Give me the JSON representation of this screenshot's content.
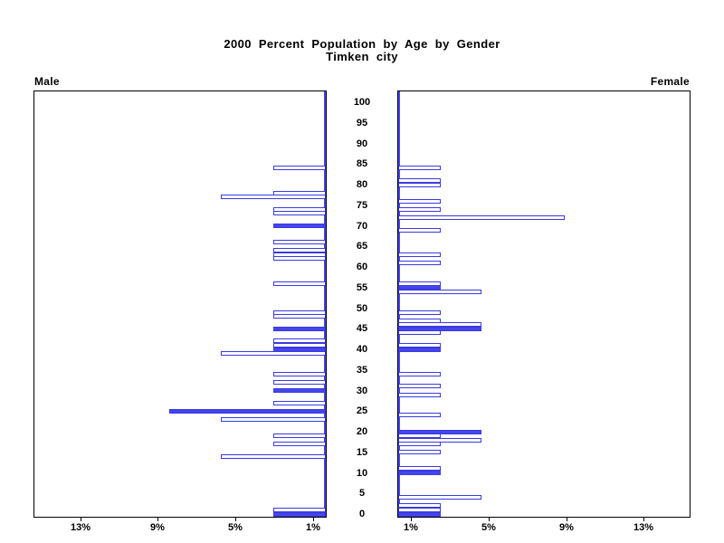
{
  "title": {
    "line1": "2000 Percent Population by Age by Gender",
    "line2": "Timken city"
  },
  "headers": {
    "left": "Male",
    "right": "Female"
  },
  "colors": {
    "bar_outline": "#3a3ae0",
    "bar_fill": "#4545ee",
    "axis_line": "#4545ee",
    "frame": "#000000",
    "text": "#000000",
    "background": "#ffffff"
  },
  "age_axis": {
    "tick_labels": [
      "0",
      "5",
      "10",
      "15",
      "20",
      "25",
      "30",
      "35",
      "40",
      "45",
      "50",
      "55",
      "60",
      "65",
      "70",
      "75",
      "80",
      "85",
      "90",
      "95",
      "100"
    ],
    "tick_values": [
      0,
      5,
      10,
      15,
      20,
      25,
      30,
      35,
      40,
      45,
      50,
      55,
      60,
      65,
      70,
      75,
      80,
      85,
      90,
      95,
      100
    ]
  },
  "pct_axis": {
    "male_tick_labels": [
      "13%",
      "9%",
      "5%",
      "1%"
    ],
    "male_tick_values": [
      13,
      9,
      5,
      1
    ],
    "female_tick_labels": [
      "1%",
      "5%",
      "9%",
      "13%"
    ],
    "female_tick_values": [
      1,
      5,
      9,
      13
    ]
  },
  "chart_data": {
    "type": "bar",
    "title": "2000 Percent Population by Age by Gender",
    "subtitle": "Timken city",
    "orientation": "horizontal-pyramid",
    "unit": "percent of population",
    "age_range": [
      0,
      100
    ],
    "pct_range": [
      0,
      15
    ],
    "age_tick_step": 5,
    "grid": false,
    "legend": "none",
    "note": "solid=true bars are filled blue (ages at 5-year highlights); solid=false bars are white with blue outline",
    "series": [
      {
        "name": "Male",
        "side": "left",
        "bars": [
          {
            "age": 84,
            "pct": 2.7,
            "solid": false
          },
          {
            "age": 78,
            "pct": 2.7,
            "solid": false
          },
          {
            "age": 77,
            "pct": 5.4,
            "solid": false
          },
          {
            "age": 74,
            "pct": 2.7,
            "solid": false
          },
          {
            "age": 73,
            "pct": 2.7,
            "solid": false
          },
          {
            "age": 70,
            "pct": 2.7,
            "solid": true
          },
          {
            "age": 66,
            "pct": 2.7,
            "solid": false
          },
          {
            "age": 64,
            "pct": 2.7,
            "solid": false
          },
          {
            "age": 63,
            "pct": 2.7,
            "solid": false
          },
          {
            "age": 62,
            "pct": 2.7,
            "solid": false
          },
          {
            "age": 56,
            "pct": 2.7,
            "solid": false
          },
          {
            "age": 49,
            "pct": 2.7,
            "solid": false
          },
          {
            "age": 48,
            "pct": 2.7,
            "solid": false
          },
          {
            "age": 45,
            "pct": 2.7,
            "solid": true
          },
          {
            "age": 42,
            "pct": 2.7,
            "solid": false
          },
          {
            "age": 41,
            "pct": 2.7,
            "solid": false
          },
          {
            "age": 40,
            "pct": 2.7,
            "solid": true
          },
          {
            "age": 39,
            "pct": 5.4,
            "solid": false
          },
          {
            "age": 34,
            "pct": 2.7,
            "solid": false
          },
          {
            "age": 32,
            "pct": 2.7,
            "solid": false
          },
          {
            "age": 30,
            "pct": 2.7,
            "solid": true
          },
          {
            "age": 27,
            "pct": 2.7,
            "solid": false
          },
          {
            "age": 25,
            "pct": 8.1,
            "solid": true
          },
          {
            "age": 23,
            "pct": 5.4,
            "solid": false
          },
          {
            "age": 19,
            "pct": 2.7,
            "solid": false
          },
          {
            "age": 17,
            "pct": 2.7,
            "solid": false
          },
          {
            "age": 14,
            "pct": 5.4,
            "solid": false
          },
          {
            "age": 1,
            "pct": 2.7,
            "solid": false
          },
          {
            "age": 0,
            "pct": 2.7,
            "solid": true
          }
        ]
      },
      {
        "name": "Female",
        "side": "right",
        "bars": [
          {
            "age": 84,
            "pct": 2.2,
            "solid": false
          },
          {
            "age": 81,
            "pct": 2.2,
            "solid": false
          },
          {
            "age": 80,
            "pct": 2.2,
            "solid": false
          },
          {
            "age": 76,
            "pct": 2.2,
            "solid": false
          },
          {
            "age": 74,
            "pct": 2.2,
            "solid": false
          },
          {
            "age": 72,
            "pct": 8.6,
            "solid": false
          },
          {
            "age": 69,
            "pct": 2.2,
            "solid": false
          },
          {
            "age": 63,
            "pct": 2.2,
            "solid": false
          },
          {
            "age": 61,
            "pct": 2.2,
            "solid": false
          },
          {
            "age": 56,
            "pct": 2.2,
            "solid": false
          },
          {
            "age": 55,
            "pct": 2.2,
            "solid": true
          },
          {
            "age": 54,
            "pct": 4.3,
            "solid": false
          },
          {
            "age": 49,
            "pct": 2.2,
            "solid": false
          },
          {
            "age": 47,
            "pct": 2.2,
            "solid": false
          },
          {
            "age": 46,
            "pct": 4.3,
            "solid": false
          },
          {
            "age": 45,
            "pct": 4.3,
            "solid": true
          },
          {
            "age": 44,
            "pct": 2.2,
            "solid": false
          },
          {
            "age": 41,
            "pct": 2.2,
            "solid": false
          },
          {
            "age": 40,
            "pct": 2.2,
            "solid": true
          },
          {
            "age": 34,
            "pct": 2.2,
            "solid": false
          },
          {
            "age": 31,
            "pct": 2.2,
            "solid": false
          },
          {
            "age": 29,
            "pct": 2.2,
            "solid": false
          },
          {
            "age": 24,
            "pct": 2.2,
            "solid": false
          },
          {
            "age": 20,
            "pct": 4.3,
            "solid": true
          },
          {
            "age": 19,
            "pct": 2.2,
            "solid": false
          },
          {
            "age": 18,
            "pct": 4.3,
            "solid": false
          },
          {
            "age": 17,
            "pct": 2.2,
            "solid": false
          },
          {
            "age": 15,
            "pct": 2.2,
            "solid": false
          },
          {
            "age": 11,
            "pct": 2.2,
            "solid": false
          },
          {
            "age": 10,
            "pct": 2.2,
            "solid": true
          },
          {
            "age": 4,
            "pct": 4.3,
            "solid": false
          },
          {
            "age": 2,
            "pct": 2.2,
            "solid": false
          },
          {
            "age": 1,
            "pct": 2.2,
            "solid": false
          },
          {
            "age": 0,
            "pct": 2.2,
            "solid": true
          }
        ]
      }
    ]
  }
}
